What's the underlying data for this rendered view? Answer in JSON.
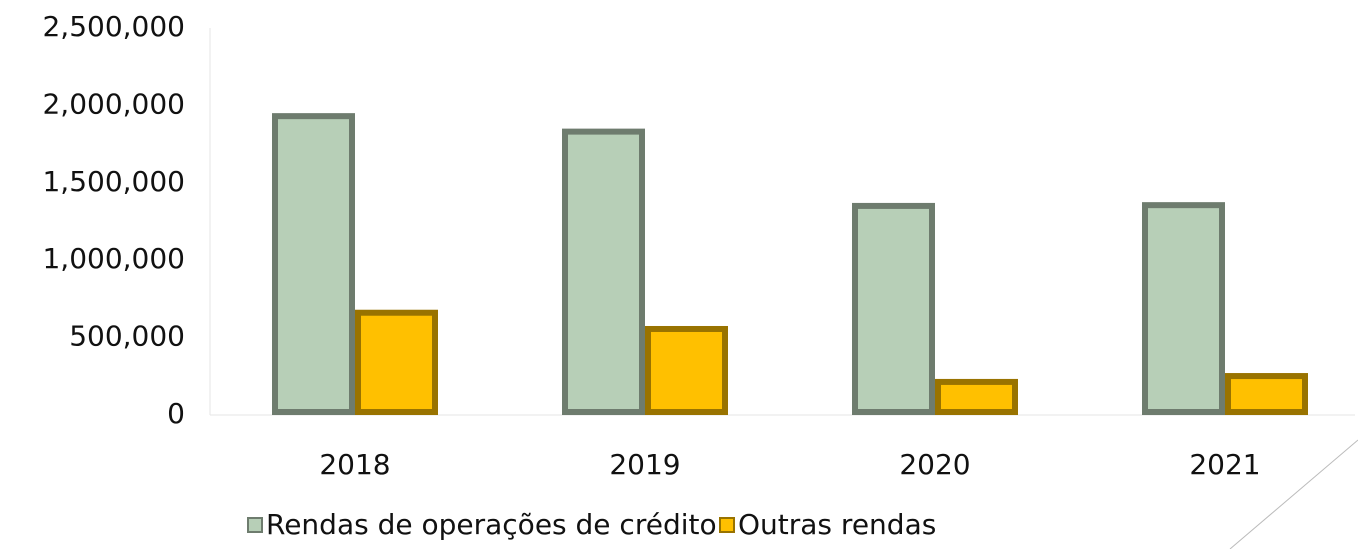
{
  "chart_data": {
    "type": "bar",
    "categories": [
      "2018",
      "2019",
      "2020",
      "2021"
    ],
    "series": [
      {
        "name": "Rendas de operações de crédito",
        "color": "#b7cfb7",
        "values": [
          1950000,
          1850000,
          1370000,
          1375000
        ]
      },
      {
        "name": "Outras rendas",
        "color": "#ffc000",
        "values": [
          680000,
          575000,
          233000,
          271000
        ]
      }
    ],
    "ylim": [
      0,
      2500000
    ],
    "yticks": [
      0,
      {
        "value": 500000,
        "label": "500,000"
      },
      {
        "value": 1000000,
        "label": "1,000,000"
      },
      {
        "value": 1500000,
        "label": "1,500,000"
      },
      {
        "value": 2000000,
        "label": "2,000,000"
      },
      {
        "value": 2500000,
        "label": "2,500,000"
      }
    ],
    "grid": false
  }
}
